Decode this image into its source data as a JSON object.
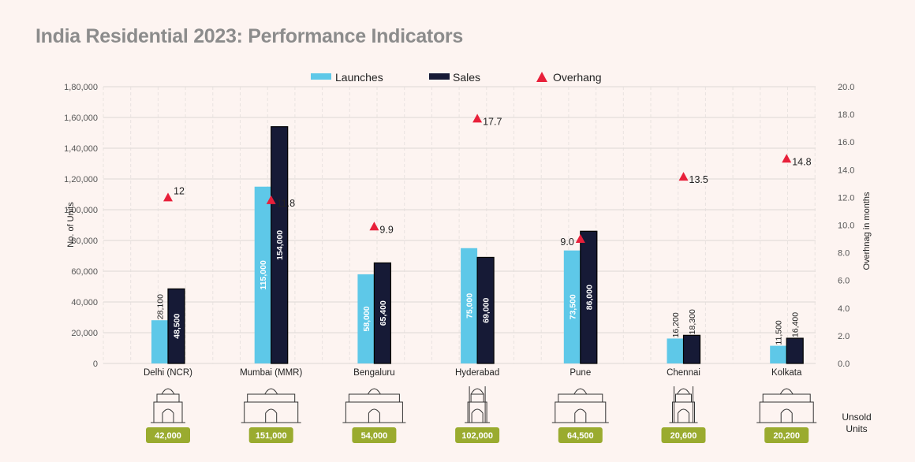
{
  "title": "India Residential 2023: Performance Indicators",
  "chart_data": {
    "type": "bar",
    "title": "India Residential 2023: Performance Indicators",
    "categories": [
      "Delhi (NCR)",
      "Mumbai (MMR)",
      "Bengaluru",
      "Hyderabad",
      "Pune",
      "Chennai",
      "Kolkata"
    ],
    "series": [
      {
        "name": "Launches",
        "type": "bar",
        "axis": "left",
        "color": "#5ec8e8",
        "values": [
          28100,
          115000,
          58000,
          75000,
          73500,
          16200,
          11500
        ],
        "labels": [
          "28,100",
          "115,000",
          "58,000",
          "75,000",
          "73,500",
          "16,200",
          "11,500"
        ]
      },
      {
        "name": "Sales",
        "type": "bar",
        "axis": "left",
        "color": "#161a36",
        "values": [
          48500,
          154000,
          65400,
          69000,
          86000,
          18300,
          16400
        ],
        "labels": [
          "48,500",
          "154,000",
          "65,400",
          "69,000",
          "86,000",
          "18,300",
          "16,400"
        ]
      },
      {
        "name": "Overhang",
        "type": "scatter",
        "marker": "triangle",
        "axis": "right",
        "color": "#e8203a",
        "values": [
          12,
          11.8,
          9.9,
          17.7,
          9.0,
          13.5,
          14.8
        ],
        "labels": [
          "12",
          "11.8",
          "9.9",
          "17.7",
          "9.0",
          "13.5",
          "14.8"
        ]
      }
    ],
    "ylabel": "No. of Units",
    "ylim": [
      0,
      180000
    ],
    "yticks": [
      "0",
      "20,000",
      "40,000",
      "60,000",
      "80,000",
      "1,00,000",
      "1,20,000",
      "1,40,000",
      "1,60,000",
      "1,80,000"
    ],
    "y2label": "Overhnag in months",
    "y2lim": [
      0,
      20
    ],
    "y2ticks": [
      "0.0",
      "2.0",
      "4.0",
      "6.0",
      "8.0",
      "10.0",
      "12.0",
      "14.0",
      "16.0",
      "18.0",
      "20.0"
    ],
    "grid": true,
    "legend": "top-center",
    "unsold": {
      "label": "Unsold Units",
      "label_lines": [
        "Unsold",
        "Units"
      ],
      "values": [
        "42,000",
        "151,000",
        "54,000",
        "102,000",
        "64,500",
        "20,600",
        "20,200"
      ],
      "color": "#9aab2f"
    },
    "landmark_icons": [
      "india-gate-icon",
      "gateway-of-india-icon",
      "vidhana-soudha-icon",
      "charminar-icon",
      "shaniwar-wada-icon",
      "chennai-central-icon",
      "victoria-memorial-icon"
    ]
  }
}
